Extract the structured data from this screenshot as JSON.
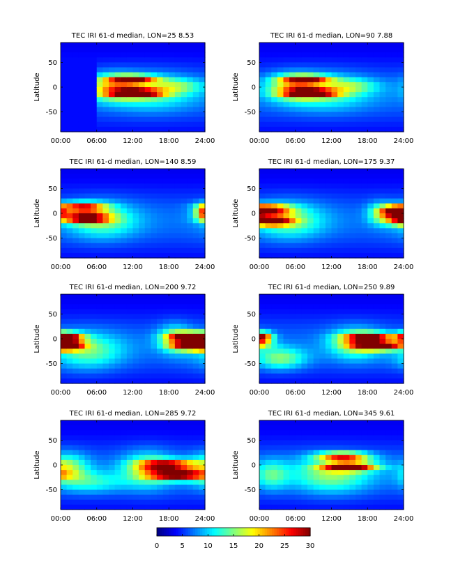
{
  "figure": {
    "colorbar": {
      "ticks": [
        "0",
        "5",
        "10",
        "15",
        "20",
        "25",
        "30"
      ],
      "range": [
        0,
        30
      ]
    }
  },
  "chart_data": [
    {
      "type": "heatmap",
      "title": "TEC  IRI 61-d median, LON=25  8.53",
      "xlabel": "",
      "ylabel": "Latitude",
      "xticks": [
        "00:00",
        "06:00",
        "12:00",
        "18:00",
        "24:00"
      ],
      "yticks": [
        "50",
        "0",
        "-50"
      ],
      "xlim": [
        0,
        24
      ],
      "ylim": [
        -90,
        90
      ],
      "features": [
        {
          "x": 12.0,
          "y": 15,
          "amp": 20,
          "sx": 2.8,
          "sy": 6
        },
        {
          "x": 12.5,
          "y": -12,
          "amp": 24,
          "sx": 3.0,
          "sy": 6
        },
        {
          "x": 8.5,
          "y": 0,
          "amp": 11,
          "sx": 3.0,
          "sy": 18
        },
        {
          "x": 15.0,
          "y": -10,
          "amp": 7,
          "sx": 5.0,
          "sy": 25
        },
        {
          "x": 19.5,
          "y": 2,
          "amp": 6,
          "sx": 3.0,
          "sy": 10
        }
      ],
      "dark_before": 5.8
    },
    {
      "type": "heatmap",
      "title": "TEC  IRI 61-d median, LON=90  7.88",
      "xlabel": "",
      "ylabel": "Latitude",
      "xticks": [
        "00:00",
        "06:00",
        "12:00",
        "18:00",
        "24:00"
      ],
      "yticks": [
        "50",
        "0",
        "-50"
      ],
      "xlim": [
        0,
        24
      ],
      "ylim": [
        -90,
        90
      ],
      "features": [
        {
          "x": 7.8,
          "y": 15,
          "amp": 19,
          "sx": 2.8,
          "sy": 6
        },
        {
          "x": 8.5,
          "y": -12,
          "amp": 23,
          "sx": 3.0,
          "sy": 6
        },
        {
          "x": 5.5,
          "y": 0,
          "amp": 10,
          "sx": 3.0,
          "sy": 18
        },
        {
          "x": 11.0,
          "y": -10,
          "amp": 7,
          "sx": 5.0,
          "sy": 25
        },
        {
          "x": 15.5,
          "y": 2,
          "amp": 6,
          "sx": 3.0,
          "sy": 10
        }
      ],
      "dark_before": 0
    },
    {
      "type": "heatmap",
      "title": "TEC  IRI 61-d median, LON=140  8.59",
      "xlabel": "",
      "ylabel": "Latitude",
      "xticks": [
        "00:00",
        "06:00",
        "12:00",
        "18:00",
        "24:00"
      ],
      "yticks": [
        "50",
        "0",
        "-50"
      ],
      "xlim": [
        0,
        24
      ],
      "ylim": [
        -90,
        90
      ],
      "features": [
        {
          "x": 3.5,
          "y": 12,
          "amp": 20,
          "sx": 2.8,
          "sy": 7
        },
        {
          "x": 4.0,
          "y": -10,
          "amp": 23,
          "sx": 2.8,
          "sy": 7
        },
        {
          "x": 7.0,
          "y": -15,
          "amp": 8,
          "sx": 4.0,
          "sy": 25
        },
        {
          "x": 23.8,
          "y": 2,
          "amp": 13,
          "sx": 1.0,
          "sy": 10
        }
      ],
      "dark_before": 0
    },
    {
      "type": "heatmap",
      "title": "TEC  IRI 61-d median, LON=175  9.37",
      "xlabel": "",
      "ylabel": "Latitude",
      "xticks": [
        "00:00",
        "06:00",
        "12:00",
        "18:00",
        "24:00"
      ],
      "yticks": [
        "50",
        "0",
        "-50"
      ],
      "xlim": [
        0,
        24
      ],
      "ylim": [
        -90,
        90
      ],
      "features": [
        {
          "x": 1.5,
          "y": 8,
          "amp": 21,
          "sx": 2.6,
          "sy": 7
        },
        {
          "x": 1.5,
          "y": -15,
          "amp": 25,
          "sx": 2.6,
          "sy": 7
        },
        {
          "x": 5.0,
          "y": -15,
          "amp": 8,
          "sx": 4.0,
          "sy": 25
        },
        {
          "x": 22.5,
          "y": 2,
          "amp": 19,
          "sx": 1.5,
          "sy": 9
        },
        {
          "x": 20.0,
          "y": 0,
          "amp": 7,
          "sx": 1.5,
          "sy": 15
        }
      ],
      "dark_before": 0
    },
    {
      "type": "heatmap",
      "title": "TEC  IRI 61-d median, LON=200  9.72",
      "xlabel": "",
      "ylabel": "Latitude",
      "xticks": [
        "00:00",
        "06:00",
        "12:00",
        "18:00",
        "24:00"
      ],
      "yticks": [
        "50",
        "0",
        "-50"
      ],
      "xlim": [
        0,
        24
      ],
      "ylim": [
        -90,
        90
      ],
      "features": [
        {
          "x": 0.8,
          "y": 2,
          "amp": 24,
          "sx": 2.0,
          "sy": 7
        },
        {
          "x": 0.8,
          "y": -15,
          "amp": 23,
          "sx": 2.0,
          "sy": 6
        },
        {
          "x": 4.5,
          "y": -25,
          "amp": 8,
          "sx": 4.0,
          "sy": 25
        },
        {
          "x": 21.5,
          "y": 3,
          "amp": 24,
          "sx": 2.4,
          "sy": 7
        },
        {
          "x": 22.0,
          "y": -15,
          "amp": 22,
          "sx": 2.4,
          "sy": 6
        },
        {
          "x": 19.0,
          "y": 0,
          "amp": 8,
          "sx": 2.0,
          "sy": 20
        }
      ],
      "dark_before": 0
    },
    {
      "type": "heatmap",
      "title": "TEC  IRI 61-d median, LON=250  9.89",
      "xlabel": "",
      "ylabel": "Latitude",
      "xticks": [
        "00:00",
        "06:00",
        "12:00",
        "18:00",
        "24:00"
      ],
      "yticks": [
        "50",
        "0",
        "-50"
      ],
      "xlim": [
        0,
        24
      ],
      "ylim": [
        -90,
        90
      ],
      "features": [
        {
          "x": 0.5,
          "y": 2,
          "amp": 21,
          "sx": 1.2,
          "sy": 8
        },
        {
          "x": 3.5,
          "y": -40,
          "amp": 9,
          "sx": 3.0,
          "sy": 15
        },
        {
          "x": 18.5,
          "y": 2,
          "amp": 23,
          "sx": 3.0,
          "sy": 7
        },
        {
          "x": 20.0,
          "y": -15,
          "amp": 25,
          "sx": 3.0,
          "sy": 6
        },
        {
          "x": 16.0,
          "y": -10,
          "amp": 9,
          "sx": 3.0,
          "sy": 22
        }
      ],
      "dark_before": 0
    },
    {
      "type": "heatmap",
      "title": "TEC  IRI 61-d median, LON=285  9.72",
      "xlabel": "",
      "ylabel": "Latitude",
      "xticks": [
        "00:00",
        "06:00",
        "12:00",
        "18:00",
        "24:00"
      ],
      "yticks": [
        "50",
        "0",
        "-50"
      ],
      "xlim": [
        0,
        24
      ],
      "ylim": [
        -90,
        90
      ],
      "features": [
        {
          "x": 18.0,
          "y": 0,
          "amp": 22,
          "sx": 3.2,
          "sy": 7
        },
        {
          "x": 19.5,
          "y": -20,
          "amp": 26,
          "sx": 3.2,
          "sy": 7
        },
        {
          "x": 14.5,
          "y": -10,
          "amp": 9,
          "sx": 3.0,
          "sy": 25
        },
        {
          "x": 1.0,
          "y": -5,
          "amp": 9,
          "sx": 2.5,
          "sy": 20
        },
        {
          "x": 5.0,
          "y": -35,
          "amp": 6,
          "sx": 4.0,
          "sy": 15
        }
      ],
      "dark_before": 0
    },
    {
      "type": "heatmap",
      "title": "TEC  IRI 61-d median, LON=345  9.61",
      "xlabel": "",
      "ylabel": "Latitude",
      "xticks": [
        "00:00",
        "06:00",
        "12:00",
        "18:00",
        "24:00"
      ],
      "yticks": [
        "50",
        "0",
        "-50"
      ],
      "xlim": [
        0,
        24
      ],
      "ylim": [
        -90,
        90
      ],
      "features": [
        {
          "x": 14.0,
          "y": 18,
          "amp": 21,
          "sx": 3.0,
          "sy": 5
        },
        {
          "x": 15.0,
          "y": -3,
          "amp": 26,
          "sx": 3.0,
          "sy": 6
        },
        {
          "x": 12.0,
          "y": -20,
          "amp": 9,
          "sx": 4.5,
          "sy": 25
        },
        {
          "x": 2.0,
          "y": -20,
          "amp": 7,
          "sx": 2.0,
          "sy": 20
        }
      ],
      "dark_before": 0
    }
  ]
}
